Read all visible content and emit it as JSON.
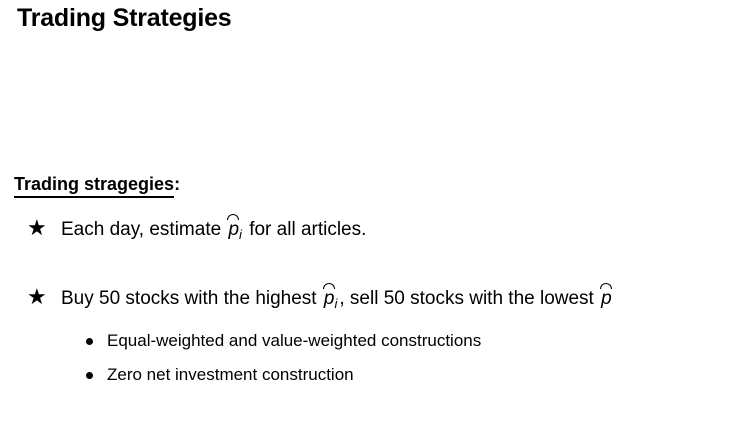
{
  "slide": {
    "title": "Trading Strategies"
  },
  "section": {
    "heading": "Trading stragegies",
    "heading_colon": ":"
  },
  "items": [
    {
      "icon": "star-icon",
      "before": "Each day, estimate ",
      "symbol": "p",
      "subscript": "i",
      "after": " for all articles."
    },
    {
      "icon": "star-icon",
      "before": "Buy 50 stocks with the highest ",
      "symbol": "p",
      "subscript": "i",
      "middle": ", sell 50 stocks with the lowest ",
      "symbol2": "p"
    }
  ],
  "subitems": [
    {
      "icon": "bullet-icon",
      "text": "Equal-weighted and value-weighted constructions"
    },
    {
      "icon": "bullet-icon",
      "text": "Zero net investment construction"
    }
  ]
}
